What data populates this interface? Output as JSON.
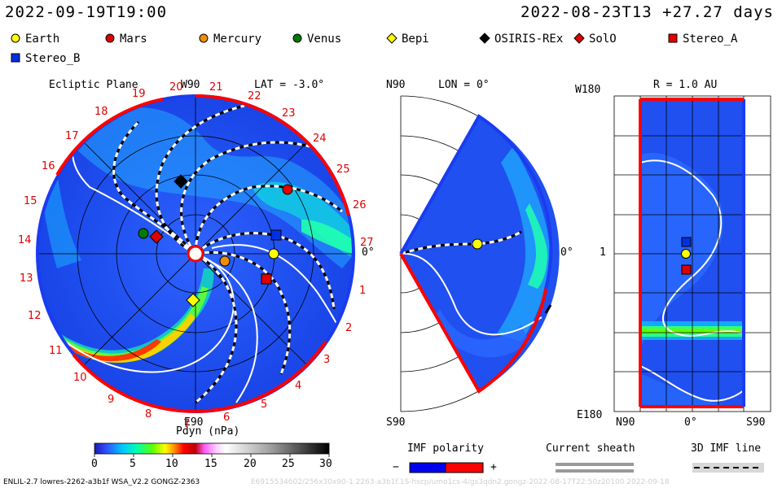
{
  "header": {
    "left_time": "2022-09-19T19:00",
    "right_time": "2022-08-23T13 +27.27 days"
  },
  "legend": {
    "items": [
      {
        "label": "Earth",
        "shape": "circle",
        "color": "#ffff00"
      },
      {
        "label": "Mars",
        "shape": "circle",
        "color": "#e00000"
      },
      {
        "label": "Mercury",
        "shape": "circle",
        "color": "#f09000"
      },
      {
        "label": "Venus",
        "shape": "circle",
        "color": "#007a00"
      },
      {
        "label": "Bepi",
        "shape": "diamond",
        "color": "#ffff00"
      },
      {
        "label": "OSIRIS-REx",
        "shape": "diamond",
        "color": "#000000"
      },
      {
        "label": "SolO",
        "shape": "diamond",
        "color": "#e00000"
      },
      {
        "label": "Stereo_A",
        "shape": "square",
        "color": "#e00000"
      },
      {
        "label": "Stereo_B",
        "shape": "square",
        "color": "#0030e0"
      }
    ]
  },
  "panels": {
    "ecliptic": {
      "title": "Ecliptic Plane",
      "top_label": "W90",
      "lat_label": "LAT = -3.0°",
      "bottom_label": "E90",
      "right_label": "0°",
      "rotation_numbers": [
        "20",
        "21",
        "22",
        "23",
        "24",
        "25",
        "26",
        "27",
        "1",
        "2",
        "3",
        "4",
        "5",
        "6",
        "7",
        "8",
        "9",
        "10",
        "11",
        "12",
        "13",
        "14",
        "15",
        "16",
        "17",
        "18",
        "19"
      ]
    },
    "meridional": {
      "top_label": "N90",
      "lon_label": "LON = 0°",
      "bottom_label": "S90",
      "right_label": "0°"
    },
    "radial": {
      "title": "R = 1.0 AU",
      "top_label": "W180",
      "bottom_label": "E180",
      "mid_label": "1",
      "x_labels": [
        "N90",
        "0°",
        "S90"
      ]
    }
  },
  "colorbar": {
    "label": "Pdyn (nPa)",
    "ticks": [
      "0",
      "5",
      "10",
      "15",
      "20",
      "25",
      "30"
    ],
    "range": [
      0,
      30
    ]
  },
  "imf": {
    "label": "IMF polarity",
    "minus": "−",
    "plus": "+",
    "current_sheath": "Current sheath",
    "imf_line": "3D IMF line",
    "minus_color": "#0000f0",
    "plus_color": "#ff0000"
  },
  "footer": {
    "text": "ENLIL-2.7 lowres-2262-a3b1f WSA_V2.2 GONGZ-2363",
    "ghost": "E6915534602/256x30x90-1 2263-a3b1f.1S-hscp/umo1cs-4/gs3qdn2.gongz-2022-08-17T22:50z20100    2022-09-18"
  },
  "chart_data": [
    {
      "type": "heatmap",
      "title": "Ecliptic Plane",
      "quantity": "Pdyn (nPa)",
      "bodies": [
        {
          "name": "Earth",
          "r_au": 1.0,
          "lon_deg": 0
        },
        {
          "name": "Mars",
          "r_au": 1.55,
          "lon_deg": 43
        },
        {
          "name": "Mercury",
          "r_au": 0.38,
          "lon_deg": -22
        },
        {
          "name": "Venus",
          "r_au": 0.72,
          "lon_deg": 167
        },
        {
          "name": "Bepi",
          "r_au": 0.7,
          "lon_deg": -91
        },
        {
          "name": "OSIRIS-REx",
          "r_au": 0.95,
          "lon_deg": 107
        },
        {
          "name": "SolO",
          "r_au": 0.53,
          "lon_deg": 158
        },
        {
          "name": "Stereo_A",
          "r_au": 0.97,
          "lon_deg": -18
        },
        {
          "name": "Stereo_B",
          "r_au": 1.02,
          "lon_deg": 16
        }
      ]
    },
    {
      "type": "heatmap",
      "title": "LON = 0°",
      "quantity": "Pdyn (nPa)",
      "bodies": [
        {
          "name": "Earth",
          "r_au": 1.0,
          "lat_deg": 0
        }
      ]
    },
    {
      "type": "heatmap",
      "title": "R = 1.0 AU",
      "quantity": "Pdyn (nPa)",
      "bodies": [
        {
          "name": "Stereo_B",
          "lat_deg": 0,
          "lon_deg": 15
        },
        {
          "name": "Earth",
          "lat_deg": 0,
          "lon_deg": 0
        },
        {
          "name": "Stereo_A",
          "lat_deg": 0,
          "lon_deg": -20
        }
      ]
    }
  ]
}
